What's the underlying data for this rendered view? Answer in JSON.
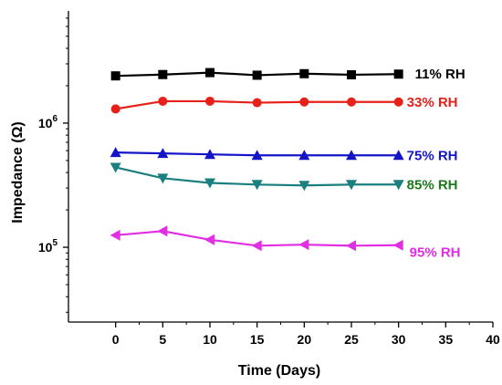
{
  "chart_data": {
    "type": "line",
    "title": "",
    "xlabel": "Time (Days)",
    "ylabel": "Impedance (Ω)",
    "xlim": [
      -5,
      40
    ],
    "ylim": [
      25000,
      8000000
    ],
    "yscale": "log",
    "grid": false,
    "legend": "labels placed at right end of each series",
    "x_ticks": [
      0,
      5,
      10,
      15,
      20,
      25,
      30,
      35,
      40
    ],
    "x_tick_labels": [
      "0",
      "5",
      "10",
      "15",
      "20",
      "25",
      "30",
      "35",
      "40"
    ],
    "y_ticks": [
      100000,
      1000000
    ],
    "y_tick_labels": [
      {
        "base": "10",
        "exp": "5"
      },
      {
        "base": "10",
        "exp": "6"
      }
    ],
    "x": [
      0,
      5,
      10,
      15,
      20,
      25,
      30
    ],
    "series": [
      {
        "name": "11% RH",
        "color": "#000000",
        "marker": "square",
        "values": [
          2400000,
          2460000,
          2550000,
          2430000,
          2500000,
          2450000,
          2480000
        ]
      },
      {
        "name": "33% RH",
        "color": "#e8201a",
        "marker": "circle",
        "values": [
          1300000,
          1500000,
          1500000,
          1460000,
          1480000,
          1480000,
          1480000
        ]
      },
      {
        "name": "75% RH",
        "color": "#1515c8",
        "marker": "triangle-up",
        "values": [
          580000,
          570000,
          560000,
          550000,
          550000,
          550000,
          550000
        ]
      },
      {
        "name": "85% RH",
        "color": "#1a7f7f",
        "label_color": "#1a7a1a",
        "marker": "triangle-down",
        "values": [
          440000,
          360000,
          330000,
          320000,
          315000,
          320000,
          320000
        ]
      },
      {
        "name": "95% RH",
        "color": "#e22ee2",
        "marker": "triangle-left",
        "values": [
          125000,
          135000,
          115000,
          103000,
          105000,
          103000,
          104000
        ]
      }
    ]
  }
}
